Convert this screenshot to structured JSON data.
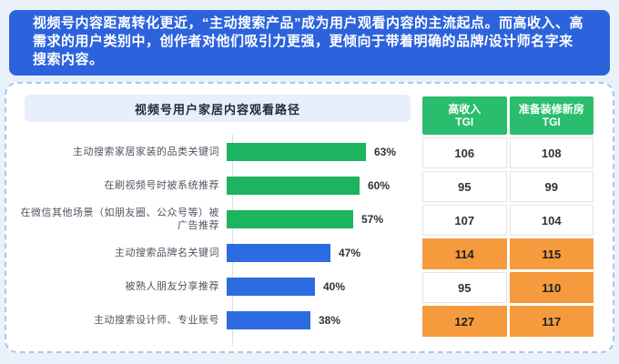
{
  "header": {
    "text": "视频号内容距离转化更近，“主动搜索产品”成为用户观看内容的主流起点。而高收入、高需求的用户类别中，创作者对他们吸引力更强，更倾向于带着明确的品牌/设计师名字来搜索内容。"
  },
  "chart_data": {
    "type": "bar",
    "orientation": "horizontal",
    "title": "视频号用户家居内容观看路径",
    "categories": [
      "主动搜索家居家装的品类关键词",
      "在刷视频号时被系统推荐",
      "在微信其他场景（如朋友圈、公众号等）被广告推荐",
      "主动搜索品牌名关键词",
      "被熟人朋友分享推荐",
      "主动搜索设计师、专业账号"
    ],
    "values": [
      63,
      60,
      57,
      47,
      40,
      38
    ],
    "value_labels": [
      "63%",
      "60%",
      "57%",
      "47%",
      "40%",
      "38%"
    ],
    "unit": "%",
    "xlim": [
      0,
      70
    ],
    "grid": false,
    "legend": "none",
    "bar_colors": [
      "#1db45f",
      "#1db45f",
      "#1db45f",
      "#2d6be0",
      "#2d6be0",
      "#2d6be0"
    ]
  },
  "table": {
    "headers": [
      {
        "title": "高收入",
        "sub": "TGI"
      },
      {
        "title": "准备装修新房",
        "sub": "TGI"
      }
    ],
    "rows": [
      [
        "106",
        "108"
      ],
      [
        "95",
        "99"
      ],
      [
        "107",
        "104"
      ],
      [
        "114",
        "115"
      ],
      [
        "95",
        "110"
      ],
      [
        "127",
        "117"
      ]
    ],
    "highlights": [
      [
        false,
        false
      ],
      [
        false,
        false
      ],
      [
        false,
        false
      ],
      [
        true,
        true
      ],
      [
        false,
        true
      ],
      [
        true,
        true
      ]
    ]
  },
  "colors": {
    "page_bg": "#e9f1fb",
    "banner_bg": "#2c63dd",
    "banner_text": "#ffffff",
    "card_border": "#a9c7ee",
    "title_bg": "#e9eefc",
    "title_text": "#1f2937",
    "axis": "#dcdfe4",
    "table_header": "#2abd6e",
    "highlight": "#f59b3d",
    "bar_green": "#1db45f",
    "bar_blue": "#2d6be0"
  }
}
